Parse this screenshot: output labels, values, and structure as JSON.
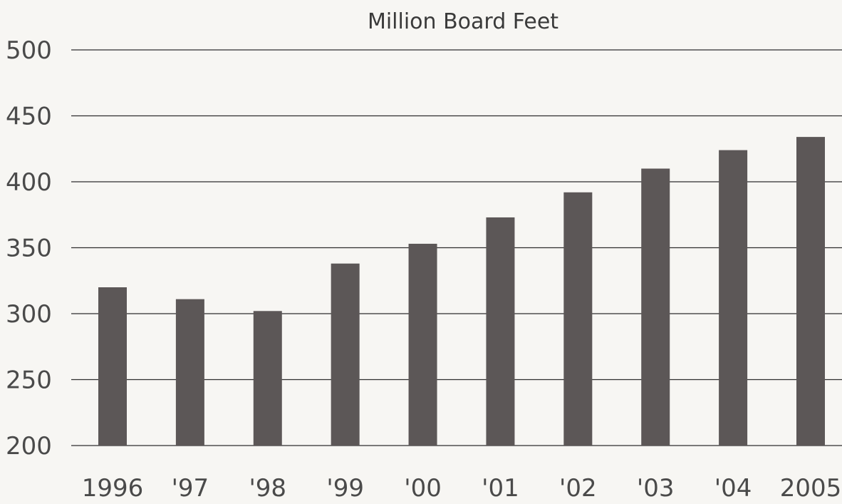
{
  "chart_data": {
    "type": "bar",
    "title": "Million Board Feet",
    "xlabel": "",
    "ylabel": "",
    "categories": [
      "1996",
      "'97",
      "'98",
      "'99",
      "'00",
      "'01",
      "'02",
      "'03",
      "'04",
      "2005"
    ],
    "values": [
      320,
      311,
      302,
      338,
      353,
      373,
      392,
      410,
      424,
      434
    ],
    "ylim": [
      200,
      500
    ],
    "yticks": [
      "200",
      "250",
      "300",
      "350",
      "400",
      "450",
      "500"
    ],
    "grid": true,
    "legend": "none",
    "colors": {
      "bar": "#5c5757",
      "grid": "#2e2e2e",
      "background": "#f7f6f3"
    }
  }
}
